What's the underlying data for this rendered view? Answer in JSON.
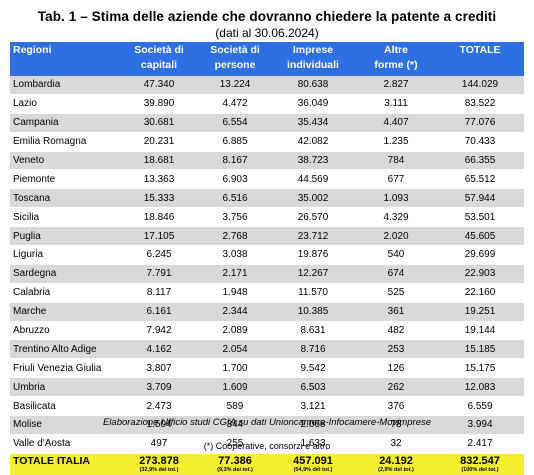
{
  "title": "Tab. 1 – Stima delle aziende che dovranno chiedere la patente a crediti",
  "subtitle": "(dati al 30.06.2024)",
  "headers": [
    {
      "line1": "Regioni",
      "line2": ""
    },
    {
      "line1": "Società di",
      "line2": "capitali"
    },
    {
      "line1": "Società di",
      "line2": "persone"
    },
    {
      "line1": "Imprese",
      "line2": "individuali"
    },
    {
      "line1": "Altre",
      "line2": "forme (*)"
    },
    {
      "line1": "TOTALE",
      "line2": ""
    }
  ],
  "rows": [
    [
      "Lombardia",
      "47.340",
      "13.224",
      "80.638",
      "2.827",
      "144.029"
    ],
    [
      "Lazio",
      "39.890",
      "4.472",
      "36.049",
      "3.111",
      "83.522"
    ],
    [
      "Campania",
      "30.681",
      "6.554",
      "35.434",
      "4.407",
      "77.076"
    ],
    [
      "Emilia Romagna",
      "20.231",
      "6.885",
      "42.082",
      "1.235",
      "70.433"
    ],
    [
      "Veneto",
      "18.681",
      "8.167",
      "38.723",
      "784",
      "66.355"
    ],
    [
      "Piemonte",
      "13.363",
      "6.903",
      "44.569",
      "677",
      "65.512"
    ],
    [
      "Toscana",
      "15.333",
      "6.516",
      "35.002",
      "1.093",
      "57.944"
    ],
    [
      "Sicilia",
      "18.846",
      "3.756",
      "26.570",
      "4.329",
      "53.501"
    ],
    [
      "Puglia",
      "17.105",
      "2.768",
      "23.712",
      "2.020",
      "45.605"
    ],
    [
      "Liguria",
      "6.245",
      "3.038",
      "19.876",
      "540",
      "29.699"
    ],
    [
      "Sardegna",
      "7.791",
      "2.171",
      "12.267",
      "674",
      "22.903"
    ],
    [
      "Calabria",
      "8.117",
      "1.948",
      "11.570",
      "525",
      "22.160"
    ],
    [
      "Marche",
      "6.161",
      "2.344",
      "10.385",
      "361",
      "19.251"
    ],
    [
      "Abruzzo",
      "7.942",
      "2.089",
      "8.631",
      "482",
      "19.144"
    ],
    [
      "Trentino Alto Adige",
      "4.162",
      "2.054",
      "8.716",
      "253",
      "15.185"
    ],
    [
      "Friuli Venezia Giulia",
      "3.807",
      "1.700",
      "9.542",
      "126",
      "15.175"
    ],
    [
      "Umbria",
      "3.709",
      "1.609",
      "6.503",
      "262",
      "12.083"
    ],
    [
      "Basilicata",
      "2.473",
      "589",
      "3.121",
      "376",
      "6.559"
    ],
    [
      "Molise",
      "1.504",
      "344",
      "2.068",
      "78",
      "3.994"
    ],
    [
      "Valle d'Aosta",
      "497",
      "255",
      "1.633",
      "32",
      "2.417"
    ]
  ],
  "total": {
    "label": "TOTALE ITALIA",
    "cells": [
      {
        "value": "273.878",
        "pct": "(32,9% del tot.)"
      },
      {
        "value": "77.386",
        "pct": "(9,3% del tot.)"
      },
      {
        "value": "457.091",
        "pct": "(54,9% del tot.)"
      },
      {
        "value": "24.192",
        "pct": "(2,9% del tot.)"
      },
      {
        "value": "832.547",
        "pct": "(100% del tot.)"
      }
    ]
  },
  "source": "Elaborazione Ufficio studi CGIA su dati Unioncamere-Infocamere-Movimprese",
  "footnote": "(*) Cooperative, consorzi e altro",
  "colors": {
    "header_bg": "#2f6fe4",
    "row_alt_bg": "#d9d9d9",
    "total_bg": "#f6ef2f"
  }
}
